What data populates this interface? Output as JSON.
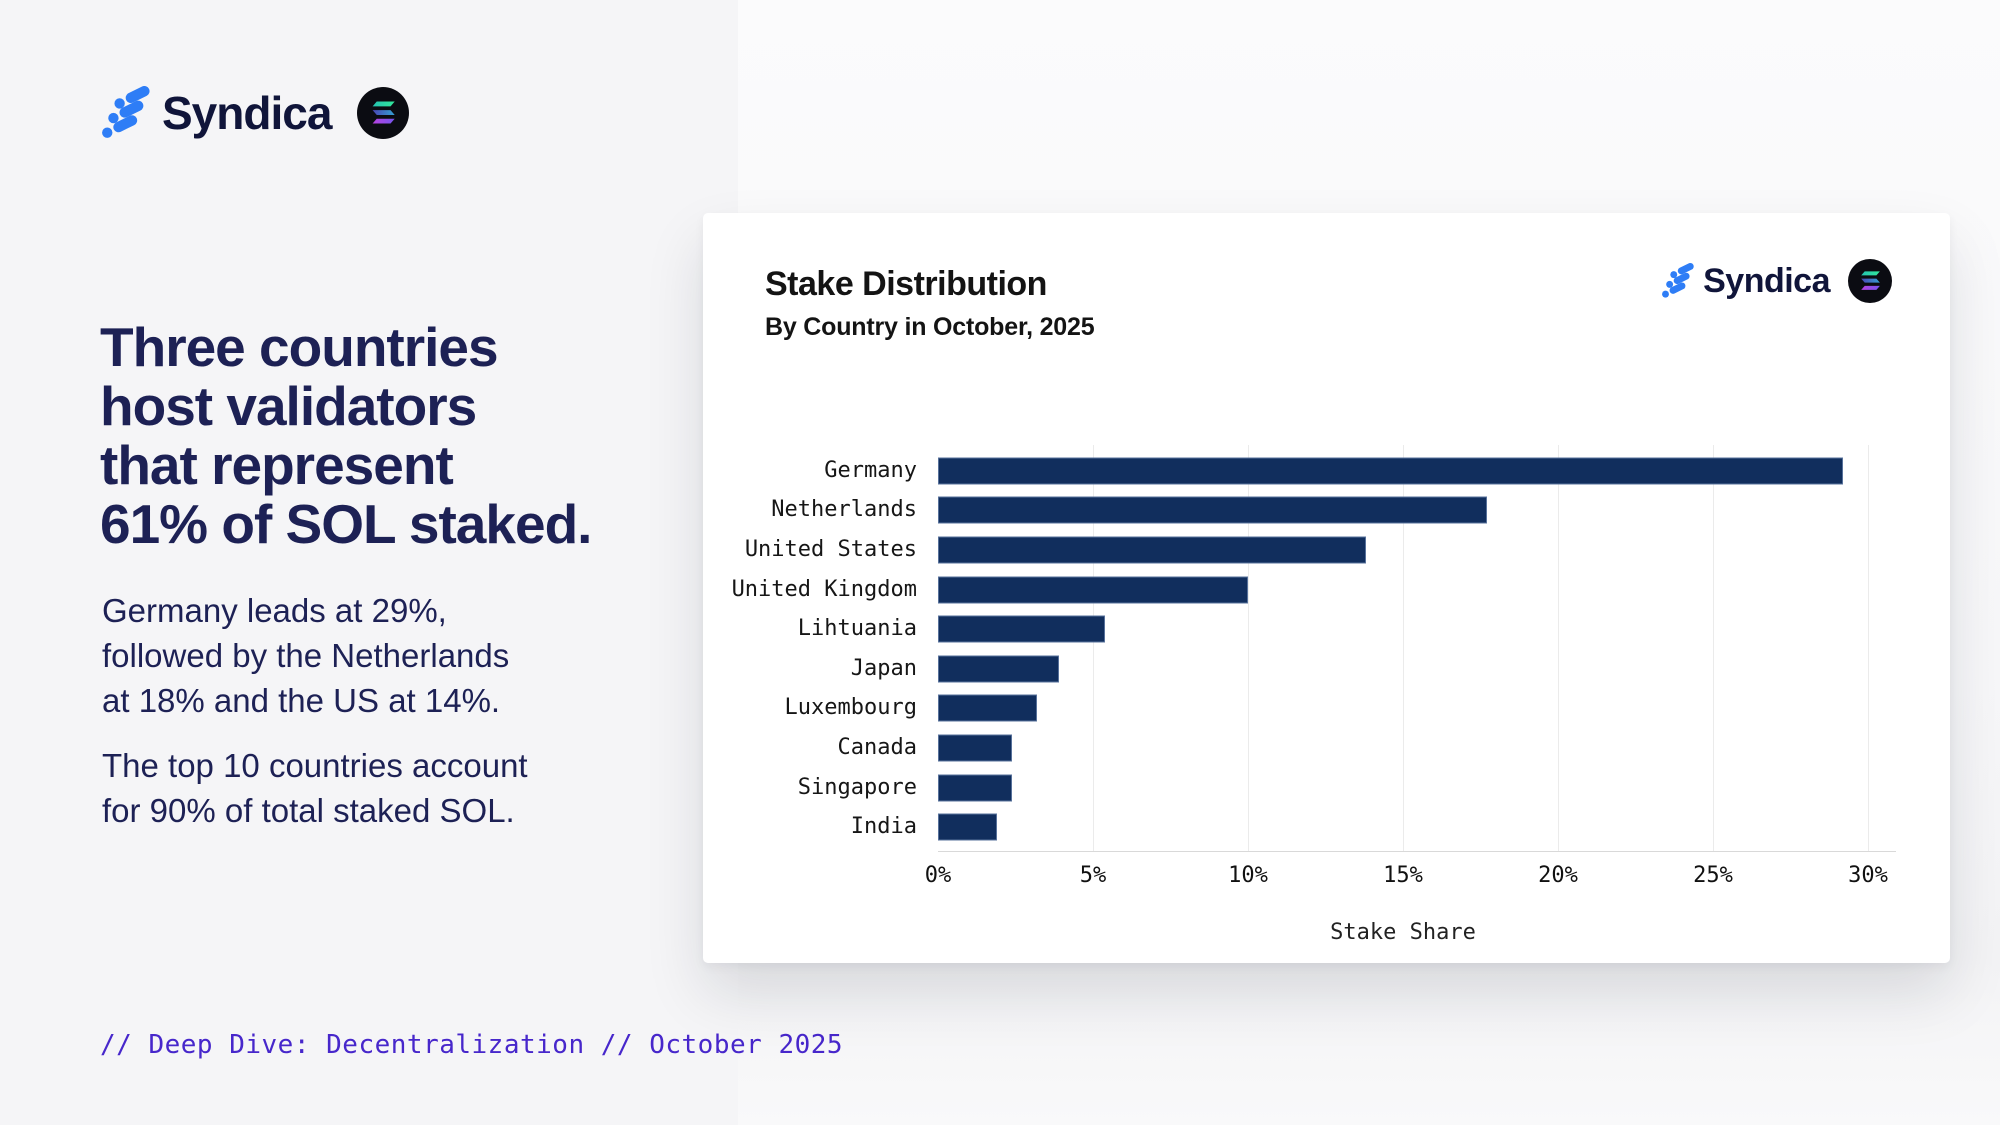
{
  "brand": {
    "name": "Syndica"
  },
  "left_panel": {
    "headline": "Three countries\nhost validators\nthat represent\n61% of SOL staked.",
    "paragraphs": [
      "Germany leads at 29%,\nfollowed by the Netherlands\nat 18% and the US at 14%.",
      "The top 10 countries account\nfor 90% of total staked SOL."
    ],
    "footer": "// Deep Dive: Decentralization // October 2025"
  },
  "chart_data": {
    "type": "bar",
    "orientation": "horizontal",
    "title": "Stake Distribution",
    "subtitle": "By Country in October, 2025",
    "categories": [
      "Germany",
      "Netherlands",
      "United States",
      "United Kingdom",
      "Lihtuania",
      "Japan",
      "Luxembourg",
      "Canada",
      "Singapore",
      "India"
    ],
    "values": [
      29.2,
      17.7,
      13.8,
      10.0,
      5.4,
      3.9,
      3.2,
      2.4,
      2.4,
      1.9
    ],
    "unit": "%",
    "xlabel": "Stake Share",
    "xlim": [
      0,
      30
    ],
    "xticks": [
      "0%",
      "5%",
      "10%",
      "15%",
      "20%",
      "25%",
      "30%"
    ],
    "xtick_values": [
      0,
      5,
      10,
      15,
      20,
      25,
      30
    ],
    "grid": true,
    "legend": "none",
    "bar_color": "#112e5d"
  },
  "colors": {
    "accent_blue": "#2e7df6",
    "navy_text": "#1d2155",
    "bar_navy": "#112e5d",
    "footer_purple": "#4727cb",
    "card_bg": "#ffffff",
    "page_bg": "#f5f5f7"
  }
}
